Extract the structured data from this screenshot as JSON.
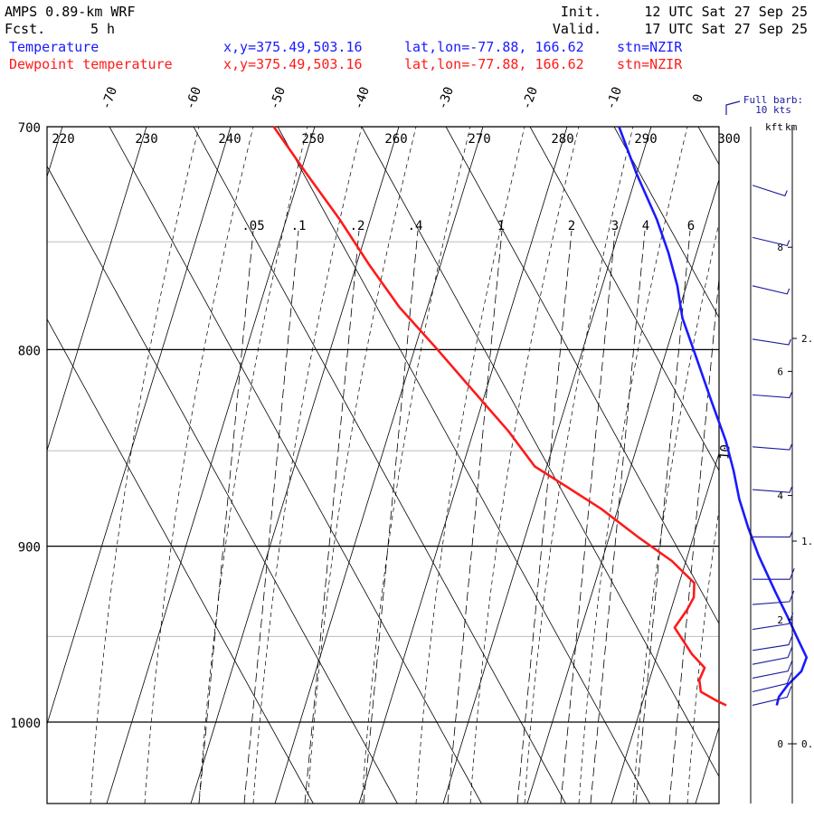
{
  "header": {
    "model": "AMPS 0.89-km WRF",
    "init_label": "Init.",
    "init_value": "12 UTC Sat 27 Sep 25",
    "fcst_label": "Fcst.",
    "fcst_value": "5 h",
    "valid_label": "Valid.",
    "valid_value": "17 UTC Sat 27 Sep 25"
  },
  "legend": [
    {
      "name": "Temperature",
      "xy": "x,y=375.49,503.16",
      "latlon": "lat,lon=-77.88, 166.62",
      "stn": "stn=NZIR",
      "color": "#1a1aff"
    },
    {
      "name": "Dewpoint temperature",
      "xy": "x,y=375.49,503.16",
      "latlon": "lat,lon=-77.88, 166.62",
      "stn": "stn=NZIR",
      "color": "#ff1a1a"
    }
  ],
  "barb_key": {
    "line1": "Full barb:",
    "line2": "10 kts"
  },
  "right_axis": {
    "kft_label": "kft",
    "km_label": "km",
    "kft_ticks": [
      {
        "label": "8",
        "value": 8
      },
      {
        "label": "6",
        "value": 6
      },
      {
        "label": "4",
        "value": 4
      },
      {
        "label": "2",
        "value": 2
      },
      {
        "label": "0",
        "value": 0
      }
    ],
    "km_ticks": [
      {
        "label": "2.",
        "value": 2
      },
      {
        "label": "1.",
        "value": 1
      },
      {
        "label": "0.",
        "value": 0
      }
    ]
  },
  "chart_data": {
    "type": "line",
    "chart_kind": "skew-T log-p",
    "y_axis": {
      "scale": "log",
      "range_hPa": [
        1050,
        700
      ],
      "ticks": [
        700,
        800,
        900,
        1000
      ],
      "labels": [
        "700",
        "800",
        "900",
        "1000"
      ]
    },
    "x_axis": {
      "unit": "degC",
      "ticks": [
        -70,
        -60,
        -50,
        -40,
        -30,
        -20,
        -10,
        0
      ],
      "labels": [
        "-70",
        "-60",
        "-50",
        "-40",
        "-30",
        "-20",
        "-10",
        "0"
      ]
    },
    "dry_adiabat_labels": [
      "220",
      "230",
      "240",
      "250",
      "260",
      "270",
      "280",
      "290",
      "300"
    ],
    "mixing_ratio_labels": [
      ".05",
      ".1",
      ".2",
      ".4",
      "1",
      "2",
      "3",
      "4",
      "6",
      "10"
    ],
    "grid": true,
    "series": [
      {
        "name": "Temperature",
        "color": "#1a1aff",
        "points": [
          {
            "p": 990,
            "t": -30.7
          },
          {
            "p": 985,
            "t": -29.9
          },
          {
            "p": 978,
            "t": -28.1
          },
          {
            "p": 970,
            "t": -25.6
          },
          {
            "p": 962,
            "t": -24.1
          },
          {
            "p": 950,
            "t": -23.9
          },
          {
            "p": 940,
            "t": -23.7
          },
          {
            "p": 925,
            "t": -23.5
          },
          {
            "p": 905,
            "t": -23.1
          },
          {
            "p": 890,
            "t": -22.5
          },
          {
            "p": 875,
            "t": -21.7
          },
          {
            "p": 860,
            "t": -20.5
          },
          {
            "p": 845,
            "t": -19.5
          },
          {
            "p": 825,
            "t": -18.6
          },
          {
            "p": 805,
            "t": -17.6
          },
          {
            "p": 785,
            "t": -16.6
          },
          {
            "p": 770,
            "t": -15.1
          },
          {
            "p": 755,
            "t": -14.0
          },
          {
            "p": 740,
            "t": -13.2
          },
          {
            "p": 720,
            "t": -12.6
          },
          {
            "p": 700,
            "t": -11.6
          }
        ]
      },
      {
        "name": "Dewpoint temperature",
        "color": "#ff1a1a",
        "points": [
          {
            "p": 990,
            "t": -36.6
          },
          {
            "p": 987,
            "t": -37.5
          },
          {
            "p": 982,
            "t": -38.7
          },
          {
            "p": 975,
            "t": -38.1
          },
          {
            "p": 968,
            "t": -36.7
          },
          {
            "p": 960,
            "t": -37.3
          },
          {
            "p": 945,
            "t": -37.6
          },
          {
            "p": 935,
            "t": -35.0
          },
          {
            "p": 928,
            "t": -33.4
          },
          {
            "p": 920,
            "t": -32.4
          },
          {
            "p": 908,
            "t": -33.6
          },
          {
            "p": 895,
            "t": -36.0
          },
          {
            "p": 880,
            "t": -38.5
          },
          {
            "p": 868,
            "t": -41.2
          },
          {
            "p": 858,
            "t": -43.5
          },
          {
            "p": 840,
            "t": -44.3
          },
          {
            "p": 820,
            "t": -45.8
          },
          {
            "p": 800,
            "t": -47.3
          },
          {
            "p": 780,
            "t": -49.0
          },
          {
            "p": 760,
            "t": -49.8
          },
          {
            "p": 740,
            "t": -50.3
          },
          {
            "p": 720,
            "t": -51.2
          },
          {
            "p": 700,
            "t": -52.0
          }
        ]
      }
    ],
    "wind_barbs": [
      {
        "p": 990,
        "dir": 120,
        "speed_kt": 10
      },
      {
        "p": 982,
        "dir": 120,
        "speed_kt": 10
      },
      {
        "p": 974,
        "dir": 115,
        "speed_kt": 10
      },
      {
        "p": 966,
        "dir": 115,
        "speed_kt": 10
      },
      {
        "p": 958,
        "dir": 110,
        "speed_kt": 10
      },
      {
        "p": 946,
        "dir": 110,
        "speed_kt": 10
      },
      {
        "p": 932,
        "dir": 100,
        "speed_kt": 10
      },
      {
        "p": 918,
        "dir": 90,
        "speed_kt": 10
      },
      {
        "p": 895,
        "dir": 90,
        "speed_kt": 5
      },
      {
        "p": 870,
        "dir": 80,
        "speed_kt": 5
      },
      {
        "p": 848,
        "dir": 80,
        "speed_kt": 5
      },
      {
        "p": 822,
        "dir": 80,
        "speed_kt": 5
      },
      {
        "p": 795,
        "dir": 70,
        "speed_kt": 5
      },
      {
        "p": 770,
        "dir": 60,
        "speed_kt": 5
      },
      {
        "p": 748,
        "dir": 60,
        "speed_kt": 5
      },
      {
        "p": 725,
        "dir": 50,
        "speed_kt": 5
      }
    ]
  }
}
